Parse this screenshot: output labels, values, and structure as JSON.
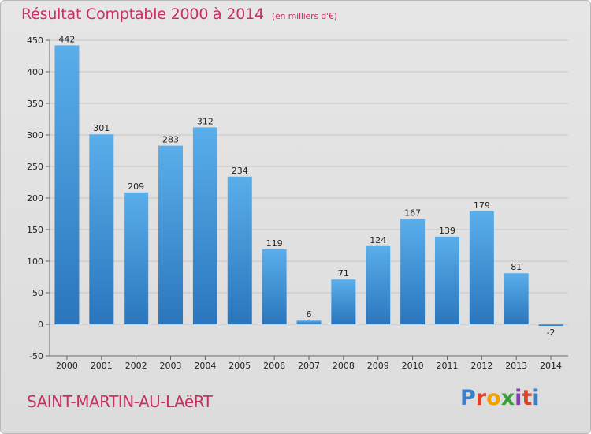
{
  "title": "Résultat Comptable 2000 à 2014",
  "unit_note": "(en milliers d'€)",
  "commune": "SAINT-MARTIN-AU-LAëRT",
  "logo": {
    "text": "Proxiti",
    "letters": [
      {
        "char": "P",
        "color": "#3a7fc8"
      },
      {
        "char": "r",
        "color": "#e0402a"
      },
      {
        "char": "o",
        "color": "#f0a000"
      },
      {
        "char": "x",
        "color": "#3aa13a"
      },
      {
        "char": "i",
        "color": "#8a3ab8"
      },
      {
        "char": "t",
        "color": "#e0402a"
      },
      {
        "char": "i",
        "color": "#3a7fc8"
      }
    ]
  },
  "chart_data": {
    "type": "bar",
    "categories": [
      "2000",
      "2001",
      "2002",
      "2003",
      "2004",
      "2005",
      "2006",
      "2007",
      "2008",
      "2009",
      "2010",
      "2011",
      "2012",
      "2013",
      "2014"
    ],
    "values": [
      442,
      301,
      209,
      283,
      312,
      234,
      119,
      6,
      71,
      124,
      167,
      139,
      179,
      81,
      -2
    ],
    "ylim": [
      -50,
      450
    ],
    "yticks": [
      -50,
      0,
      50,
      100,
      150,
      200,
      250,
      300,
      350,
      400,
      450
    ],
    "grid": true,
    "bar_color": "#4a9fe0",
    "bar_color_dark": "#2b78c0"
  }
}
